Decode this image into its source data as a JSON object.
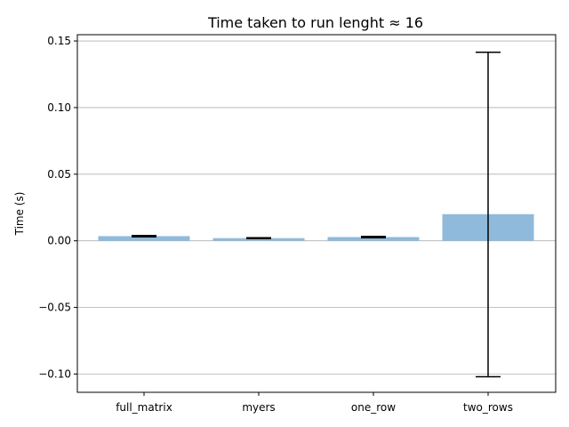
{
  "chart_data": {
    "type": "bar",
    "title": "Time taken to run lenght ≈ 16",
    "xlabel": "",
    "ylabel": "Time (s)",
    "categories": [
      "full_matrix",
      "myers",
      "one_row",
      "two_rows"
    ],
    "values": [
      0.0035,
      0.002,
      0.0028,
      0.02
    ],
    "error_low": [
      0.003,
      0.0017,
      0.0023,
      -0.102
    ],
    "error_high": [
      0.004,
      0.0023,
      0.0033,
      0.1415
    ],
    "ylim": [
      -0.1137,
      0.1547
    ],
    "yticks": [
      -0.1,
      -0.05,
      0.0,
      0.05,
      0.1,
      0.15
    ],
    "ytick_labels": [
      "−0.10",
      "−0.05",
      "0.00",
      "0.05",
      "0.10",
      "0.15"
    ],
    "grid": "y",
    "bar_color": "#8fbadb",
    "legend": "none"
  }
}
